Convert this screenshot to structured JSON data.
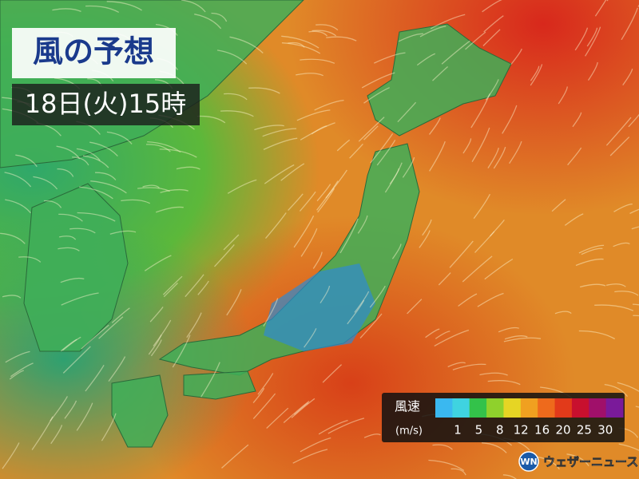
{
  "header": {
    "title": "風の予想",
    "time": "18日(火)15時"
  },
  "legend": {
    "title": "風速",
    "unit": "(m/s)",
    "ticks": [
      1,
      5,
      8,
      12,
      16,
      20,
      25,
      30
    ],
    "colors": [
      "#3ab8f0",
      "#3fd3e0",
      "#33c24a",
      "#8fd12c",
      "#e6d524",
      "#f0a020",
      "#ee6a1c",
      "#e23a1a",
      "#c8102e",
      "#a0106a",
      "#7a1a9a"
    ]
  },
  "brand": {
    "logo": "WN",
    "name": "ウェザーニュース"
  }
}
